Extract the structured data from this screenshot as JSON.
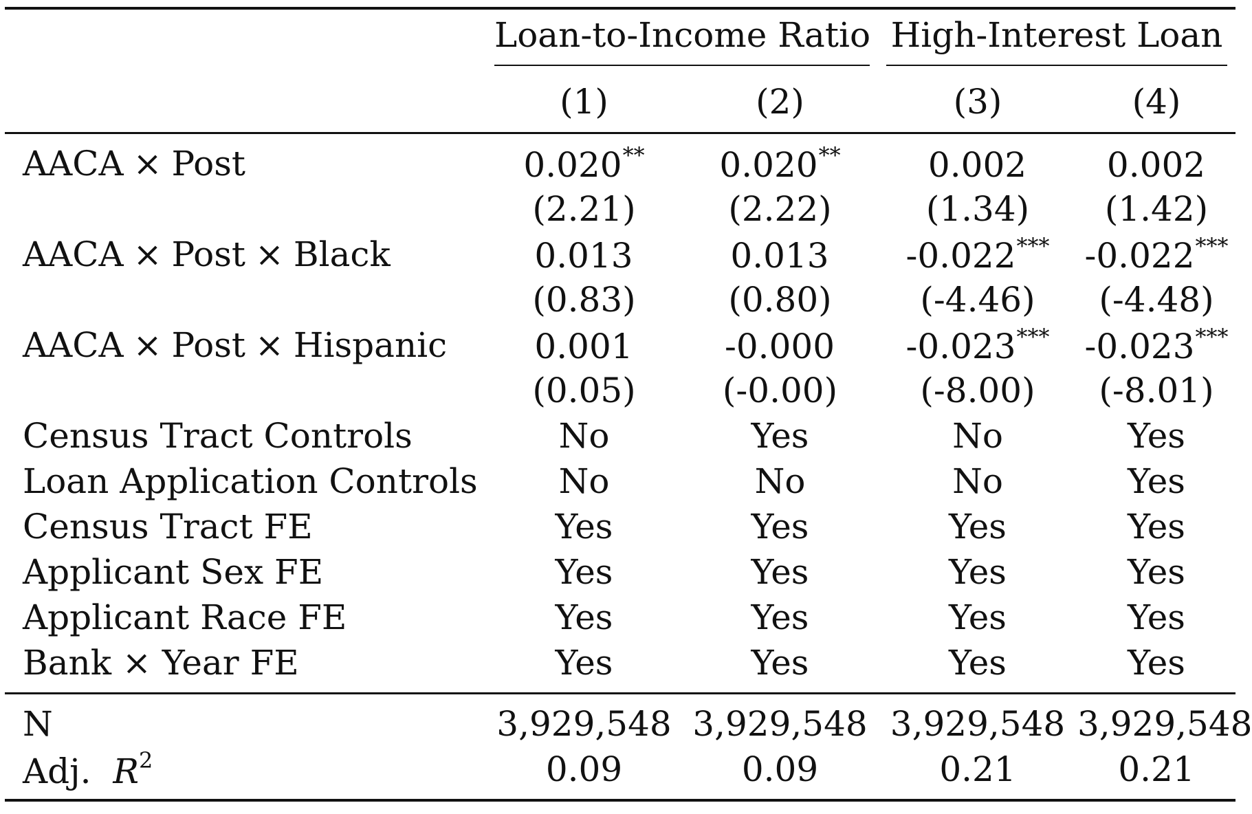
{
  "table": {
    "column_groups": [
      {
        "label": "Loan-to-Income Ratio",
        "span": 2
      },
      {
        "label": "High-Interest Loan",
        "span": 2
      }
    ],
    "column_numbers": [
      "(1)",
      "(2)",
      "(3)",
      "(4)"
    ],
    "coefficients": [
      {
        "label_parts": [
          "AACA",
          "×",
          "Post"
        ],
        "values": [
          {
            "coef": "0.020",
            "stars": "**",
            "t": "(2.21)"
          },
          {
            "coef": "0.020",
            "stars": "**",
            "t": "(2.22)"
          },
          {
            "coef": "0.002",
            "stars": "",
            "t": "(1.34)"
          },
          {
            "coef": "0.002",
            "stars": "",
            "t": "(1.42)"
          }
        ]
      },
      {
        "label_parts": [
          "AACA",
          "×",
          "Post",
          "×",
          "Black"
        ],
        "values": [
          {
            "coef": "0.013",
            "stars": "",
            "t": "(0.83)"
          },
          {
            "coef": "0.013",
            "stars": "",
            "t": "(0.80)"
          },
          {
            "coef": "-0.022",
            "stars": "***",
            "t": "(-4.46)"
          },
          {
            "coef": "-0.022",
            "stars": "***",
            "t": "(-4.48)"
          }
        ]
      },
      {
        "label_parts": [
          "AACA",
          "×",
          "Post",
          "×",
          "Hispanic"
        ],
        "values": [
          {
            "coef": "0.001",
            "stars": "",
            "t": "(0.05)"
          },
          {
            "coef": "-0.000",
            "stars": "",
            "t": "(-0.00)"
          },
          {
            "coef": "-0.023",
            "stars": "***",
            "t": "(-8.00)"
          },
          {
            "coef": "-0.023",
            "stars": "***",
            "t": "(-8.01)"
          }
        ]
      }
    ],
    "controls": [
      {
        "label": "Census Tract Controls",
        "values": [
          "No",
          "Yes",
          "No",
          "Yes"
        ]
      },
      {
        "label": "Loan Application Controls",
        "values": [
          "No",
          "No",
          "No",
          "Yes"
        ]
      },
      {
        "label": "Census Tract FE",
        "values": [
          "Yes",
          "Yes",
          "Yes",
          "Yes"
        ]
      },
      {
        "label": "Applicant Sex FE",
        "values": [
          "Yes",
          "Yes",
          "Yes",
          "Yes"
        ]
      },
      {
        "label": "Applicant Race FE",
        "values": [
          "Yes",
          "Yes",
          "Yes",
          "Yes"
        ]
      },
      {
        "label": "Bank × Year FE",
        "values": [
          "Yes",
          "Yes",
          "Yes",
          "Yes"
        ]
      }
    ],
    "stats": {
      "n_label": "N",
      "n_values": [
        "3,929,548",
        "3,929,548",
        "3,929,548",
        "3,929,548"
      ],
      "r2_label_prefix": "Adj.",
      "r2_symbol": "R",
      "r2_sup": "2",
      "r2_values": [
        "0.09",
        "0.09",
        "0.21",
        "0.21"
      ]
    }
  }
}
